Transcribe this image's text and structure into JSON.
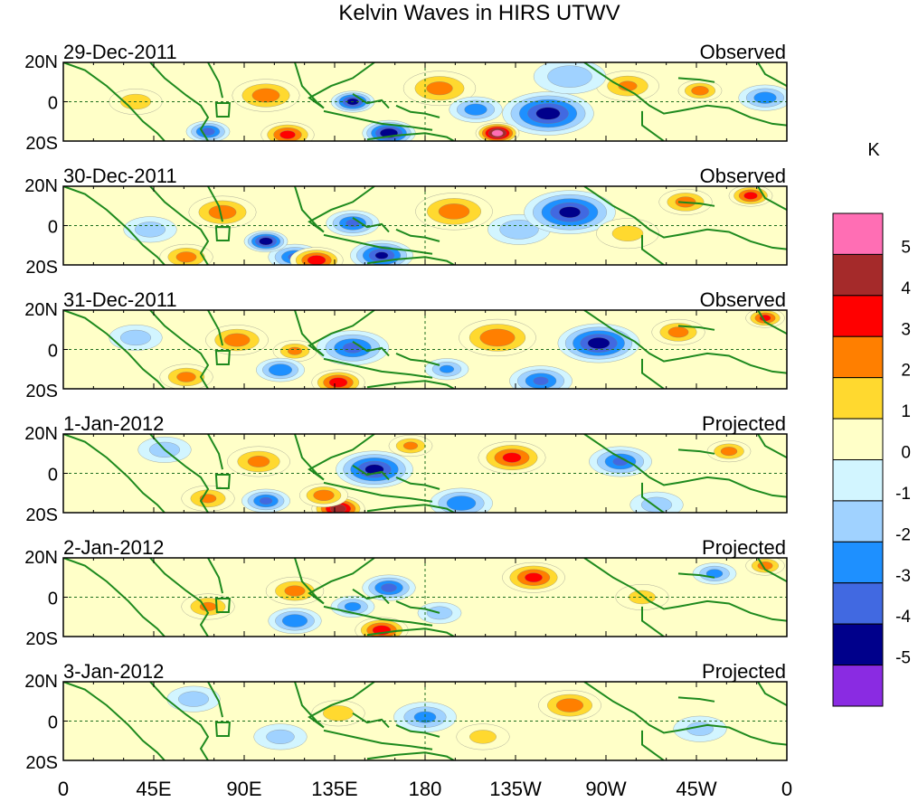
{
  "chart_data": {
    "type": "heatmap",
    "title": "Kelvin Waves in HIRS UTWV",
    "colorbar": {
      "unit": "K",
      "labels": [
        "5",
        "4",
        "3",
        "2",
        "1",
        "0",
        "-1",
        "-2",
        "-3",
        "-4",
        "-5"
      ],
      "colors": [
        "#ff6eb4",
        "#a52a2a",
        "#ff0000",
        "#ff7f00",
        "#ffd92f",
        "#ffffc8",
        "#d2f5ff",
        "#a0d2ff",
        "#1e90ff",
        "#4169e1",
        "#00008b",
        "#8a2be2"
      ]
    },
    "x_ticks": [
      "0",
      "45E",
      "90E",
      "135E",
      "180",
      "135W",
      "90W",
      "45W",
      "0"
    ],
    "x_range_deg": [
      0,
      360
    ],
    "y_ticks": [
      "20N",
      "0",
      "20S"
    ],
    "y_range_deg": [
      -20,
      20
    ],
    "panels": [
      {
        "date": "29-Dec-2011",
        "status": "Observed",
        "features": [
          [
            0.28,
            0.42,
            13,
            2.5
          ],
          [
            0.52,
            0.33,
            14,
            2.3
          ],
          [
            0.57,
            0.6,
            10,
            -2.5
          ],
          [
            0.67,
            0.65,
            18,
            -4.5
          ],
          [
            0.78,
            0.3,
            12,
            2.0
          ],
          [
            0.88,
            0.36,
            8,
            2.3
          ],
          [
            0.45,
            0.9,
            10,
            -4.8
          ],
          [
            0.31,
            0.92,
            10,
            3.2
          ],
          [
            0.4,
            0.5,
            8,
            -4.2
          ],
          [
            0.6,
            0.9,
            8,
            5.3
          ],
          [
            0.2,
            0.88,
            8,
            -3.2
          ],
          [
            0.97,
            0.45,
            10,
            -2.5
          ],
          [
            0.1,
            0.5,
            10,
            1.5
          ],
          [
            0.7,
            0.18,
            14,
            -1.8
          ]
        ]
      },
      {
        "date": "30-Dec-2011",
        "status": "Observed",
        "features": [
          [
            0.22,
            0.33,
            13,
            2.5
          ],
          [
            0.4,
            0.47,
            10,
            -3.0
          ],
          [
            0.54,
            0.32,
            15,
            2.5
          ],
          [
            0.63,
            0.55,
            12,
            -1.8
          ],
          [
            0.7,
            0.33,
            18,
            -4.3
          ],
          [
            0.86,
            0.2,
            10,
            2.3
          ],
          [
            0.32,
            0.9,
            10,
            -3.0
          ],
          [
            0.44,
            0.88,
            12,
            -4.0
          ],
          [
            0.35,
            0.94,
            10,
            3.5
          ],
          [
            0.17,
            0.9,
            10,
            2.3
          ],
          [
            0.12,
            0.55,
            10,
            -1.5
          ],
          [
            0.28,
            0.7,
            8,
            -4.5
          ],
          [
            0.78,
            0.6,
            12,
            1.2
          ],
          [
            0.95,
            0.12,
            8,
            3.2
          ]
        ]
      },
      {
        "date": "31-Dec-2011",
        "status": "Observed",
        "features": [
          [
            0.24,
            0.38,
            12,
            2.5
          ],
          [
            0.4,
            0.48,
            14,
            -3.2
          ],
          [
            0.6,
            0.35,
            15,
            2.8
          ],
          [
            0.74,
            0.42,
            16,
            -4.5
          ],
          [
            0.85,
            0.28,
            10,
            2.3
          ],
          [
            0.66,
            0.9,
            12,
            -3.0
          ],
          [
            0.38,
            0.92,
            10,
            3.5
          ],
          [
            0.32,
            0.52,
            8,
            2.0
          ],
          [
            0.17,
            0.85,
            10,
            2.2
          ],
          [
            0.53,
            0.75,
            8,
            -2.0
          ],
          [
            0.3,
            0.76,
            9,
            -2.8
          ],
          [
            0.97,
            0.1,
            7,
            3.0
          ],
          [
            0.1,
            0.35,
            10,
            -1.5
          ]
        ]
      },
      {
        "date": "1-Jan-2012",
        "status": "Projected",
        "features": [
          [
            0.27,
            0.35,
            12,
            2.2
          ],
          [
            0.43,
            0.45,
            15,
            -4.3
          ],
          [
            0.62,
            0.3,
            13,
            3.2
          ],
          [
            0.77,
            0.35,
            12,
            -3.0
          ],
          [
            0.92,
            0.22,
            8,
            2.2
          ],
          [
            0.38,
            0.95,
            10,
            4.5
          ],
          [
            0.55,
            0.88,
            12,
            -2.8
          ],
          [
            0.2,
            0.82,
            10,
            2.0
          ],
          [
            0.28,
            0.85,
            9,
            -3.0
          ],
          [
            0.36,
            0.78,
            9,
            2.5
          ],
          [
            0.14,
            0.2,
            10,
            -1.5
          ],
          [
            0.48,
            0.15,
            8,
            2.0
          ],
          [
            0.82,
            0.9,
            10,
            -1.5
          ]
        ]
      },
      {
        "date": "2-Jan-2012",
        "status": "Projected",
        "features": [
          [
            0.65,
            0.25,
            12,
            3.2
          ],
          [
            0.45,
            0.38,
            10,
            -3.2
          ],
          [
            0.32,
            0.42,
            11,
            2.2
          ],
          [
            0.44,
            0.92,
            10,
            3.5
          ],
          [
            0.32,
            0.8,
            10,
            -2.8
          ],
          [
            0.2,
            0.62,
            10,
            2.0
          ],
          [
            0.9,
            0.2,
            8,
            -2.2
          ],
          [
            0.52,
            0.7,
            8,
            -1.5
          ],
          [
            0.4,
            0.62,
            8,
            -2.2
          ],
          [
            0.8,
            0.5,
            10,
            1.2
          ],
          [
            0.97,
            0.1,
            7,
            2.2
          ]
        ]
      },
      {
        "date": "3-Jan-2012",
        "status": "Projected",
        "features": [
          [
            0.7,
            0.3,
            12,
            2.6
          ],
          [
            0.5,
            0.45,
            12,
            -2.2
          ],
          [
            0.38,
            0.4,
            10,
            1.5
          ],
          [
            0.18,
            0.22,
            10,
            -1.5
          ],
          [
            0.3,
            0.7,
            10,
            -1.3
          ],
          [
            0.58,
            0.7,
            10,
            1.2
          ],
          [
            0.88,
            0.6,
            10,
            -1.2
          ]
        ]
      }
    ]
  }
}
